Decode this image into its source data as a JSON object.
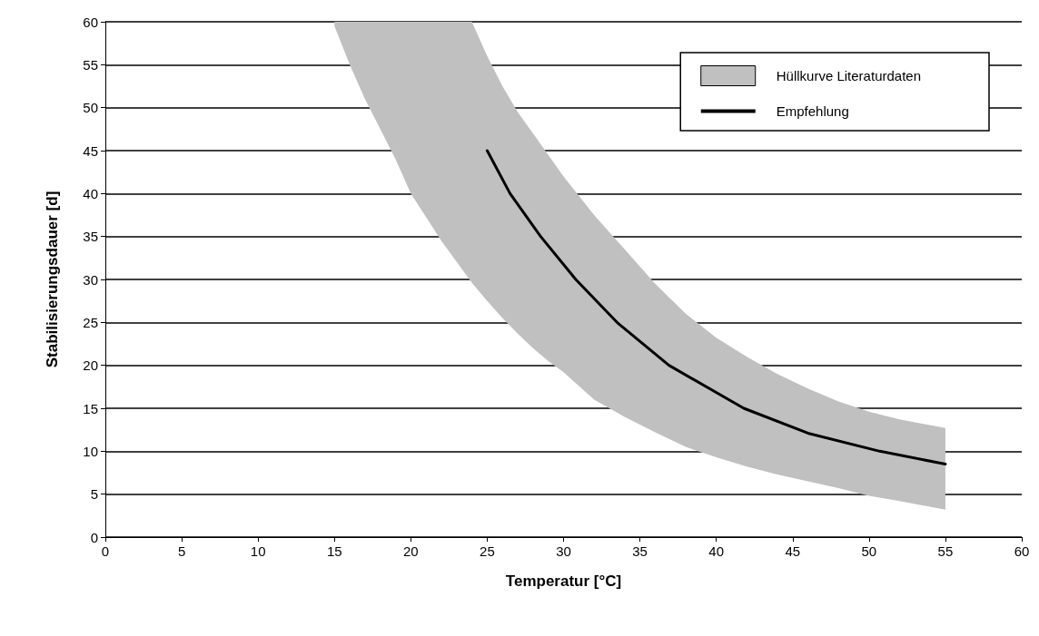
{
  "chart_data": {
    "type": "line",
    "xlabel": "Temperatur [°C]",
    "ylabel": "Stabilisierungsdauer [d]",
    "xlim": [
      0,
      60
    ],
    "xticks": [
      0,
      5,
      10,
      15,
      20,
      25,
      30,
      35,
      40,
      45,
      50,
      55,
      60
    ],
    "ylim": [
      0,
      60
    ],
    "yticks": [
      0,
      5,
      10,
      15,
      20,
      25,
      30,
      35,
      40,
      45,
      50,
      55,
      60
    ],
    "grid": "y",
    "legend": "top right",
    "series": [
      {
        "type": "area",
        "name": "Hüllkurve Literaturdaten",
        "color": "#c0c0c0",
        "x": [
          15,
          16,
          17,
          18,
          19,
          20,
          22,
          24,
          25,
          26,
          27,
          28,
          29,
          30,
          32,
          34,
          36,
          38,
          40,
          42,
          44,
          46,
          48,
          50,
          52,
          55
        ],
        "values": [
          null,
          null,
          null,
          null,
          null,
          null,
          null,
          null,
          null,
          null,
          null,
          null,
          null,
          null,
          null,
          null,
          null,
          null,
          null,
          null,
          null,
          null,
          null,
          null,
          null,
          null
        ],
        "upper": [
          60,
          60,
          60,
          60,
          60,
          60,
          60,
          60,
          56,
          52.5,
          49.5,
          47,
          44.5,
          42,
          37.5,
          33.5,
          29.5,
          26,
          23.2,
          21,
          19,
          17.3,
          15.8,
          14.6,
          13.7,
          12.7
        ],
        "lower": [
          59.5,
          55,
          51,
          47.5,
          44,
          40,
          34.5,
          29.6,
          27.5,
          25.5,
          23.7,
          22,
          20.5,
          19.2,
          16,
          14,
          12.2,
          10.5,
          9.3,
          8.2,
          7.3,
          6.5,
          5.7,
          4.8,
          4.2,
          3.2
        ]
      },
      {
        "name": "Empfehlung",
        "color": "#000000",
        "x": [
          25,
          26.5,
          28.5,
          30.8,
          33.5,
          36.9,
          41.8,
          46,
          50.7,
          55
        ],
        "values": [
          45,
          40,
          35,
          30,
          25,
          20,
          15,
          12.1,
          10,
          8.5
        ]
      }
    ]
  }
}
